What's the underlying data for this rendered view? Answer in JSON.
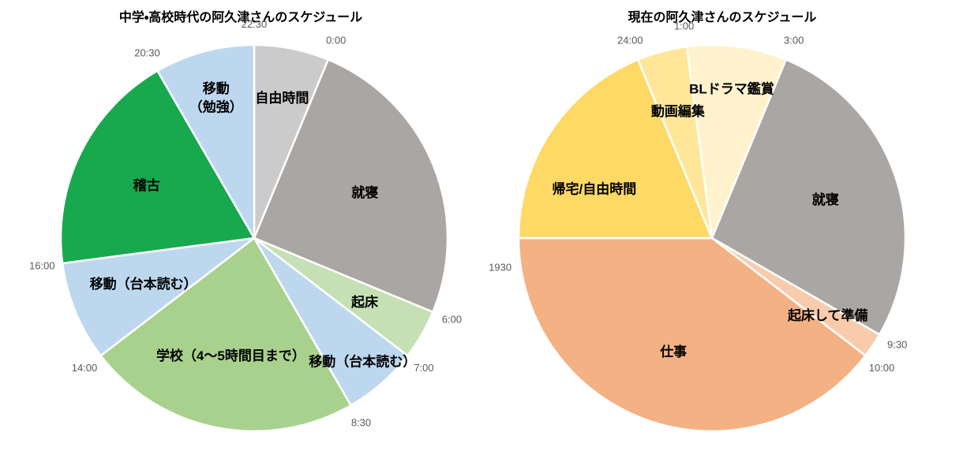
{
  "figure": {
    "background": "#ffffff",
    "slice_border_color": "#ffffff",
    "time_label_color": "#595959",
    "slice_label_color": "#000000"
  },
  "chart_data": [
    {
      "type": "pie",
      "title": "中学・高校時代の阿久津さんのスケジュール",
      "units": "hours",
      "clock_hours": 24,
      "degrees_per_hour": 15,
      "top_time_h": 22.5,
      "slices": [
        {
          "label": "自由時間",
          "start": "22:30",
          "end": "0:00",
          "start_h": 22.5,
          "end_h": 24.0,
          "hours": 1.5,
          "color": "#cbcbcb",
          "boundary_label": "22:30"
        },
        {
          "label": "就寝",
          "start": "0:00",
          "end": "6:00",
          "start_h": 24.0,
          "end_h": 30.0,
          "hours": 6.0,
          "color": "#aaa6a3",
          "boundary_label": "0:00"
        },
        {
          "label": "起床",
          "start": "6:00",
          "end": "7:00",
          "start_h": 30.0,
          "end_h": 31.0,
          "hours": 1.0,
          "color": "#c5e0b4",
          "boundary_label": "6:00"
        },
        {
          "label": "移動（台本読む）",
          "start": "7:00",
          "end": "8:30",
          "start_h": 31.0,
          "end_h": 32.5,
          "hours": 1.5,
          "color": "#bdd7ee",
          "boundary_label": "7:00"
        },
        {
          "label": "学校（4〜5時間目まで）",
          "start": "8:30",
          "end": "14:00",
          "start_h": 32.5,
          "end_h": 38.0,
          "hours": 5.5,
          "color": "#a9d18e",
          "boundary_label": "8:30"
        },
        {
          "label": "移動（台本読む）",
          "start": "14:00",
          "end": "16:00",
          "start_h": 38.0,
          "end_h": 40.0,
          "hours": 2.0,
          "color": "#bdd7ee",
          "boundary_label": "14:00"
        },
        {
          "label": "稽古",
          "start": "16:00",
          "end": "20:30",
          "start_h": 40.0,
          "end_h": 44.5,
          "hours": 4.5,
          "color": "#18a94e",
          "boundary_label": "16:00"
        },
        {
          "label": "移動\n（勉強）",
          "start": "20:30",
          "end": "22:30",
          "start_h": 44.5,
          "end_h": 46.5,
          "hours": 2.0,
          "color": "#bdd7ee",
          "boundary_label": "20:30"
        }
      ]
    },
    {
      "type": "pie",
      "title": "現在の阿久津さんのスケジュール",
      "units": "hours",
      "clock_hours": 24,
      "degrees_per_hour": 15,
      "top_time_h": 1.5,
      "slices": [
        {
          "label": "BLドラマ鑑賞",
          "start": "1:00",
          "end": "3:00",
          "start_h": 1.0,
          "end_h": 3.0,
          "hours": 2.0,
          "color": "#fff2cc",
          "boundary_label": "1:00"
        },
        {
          "label": "就寝",
          "start": "3:00",
          "end": "9:30",
          "start_h": 3.0,
          "end_h": 9.5,
          "hours": 6.5,
          "color": "#aaa6a3",
          "boundary_label": "3:00"
        },
        {
          "label": "起床して準備",
          "start": "9:30",
          "end": "10:00",
          "start_h": 9.5,
          "end_h": 10.0,
          "hours": 0.5,
          "color": "#f8cbad",
          "boundary_label": "9:30"
        },
        {
          "label": "仕事",
          "start": "10:00",
          "end": "1930",
          "start_h": 10.0,
          "end_h": 19.5,
          "hours": 9.5,
          "color": "#f4b183",
          "boundary_label": "10:00"
        },
        {
          "label": "帰宅/自由時間",
          "start": "1930",
          "end": "24:00",
          "start_h": 19.5,
          "end_h": 24.0,
          "hours": 4.5,
          "color": "#ffd966",
          "boundary_label": "1930"
        },
        {
          "label": "動画編集",
          "start": "24:00",
          "end": "1:00",
          "start_h": 24.0,
          "end_h": 25.0,
          "hours": 1.0,
          "color": "#ffe699",
          "boundary_label": "24:00"
        }
      ]
    }
  ]
}
